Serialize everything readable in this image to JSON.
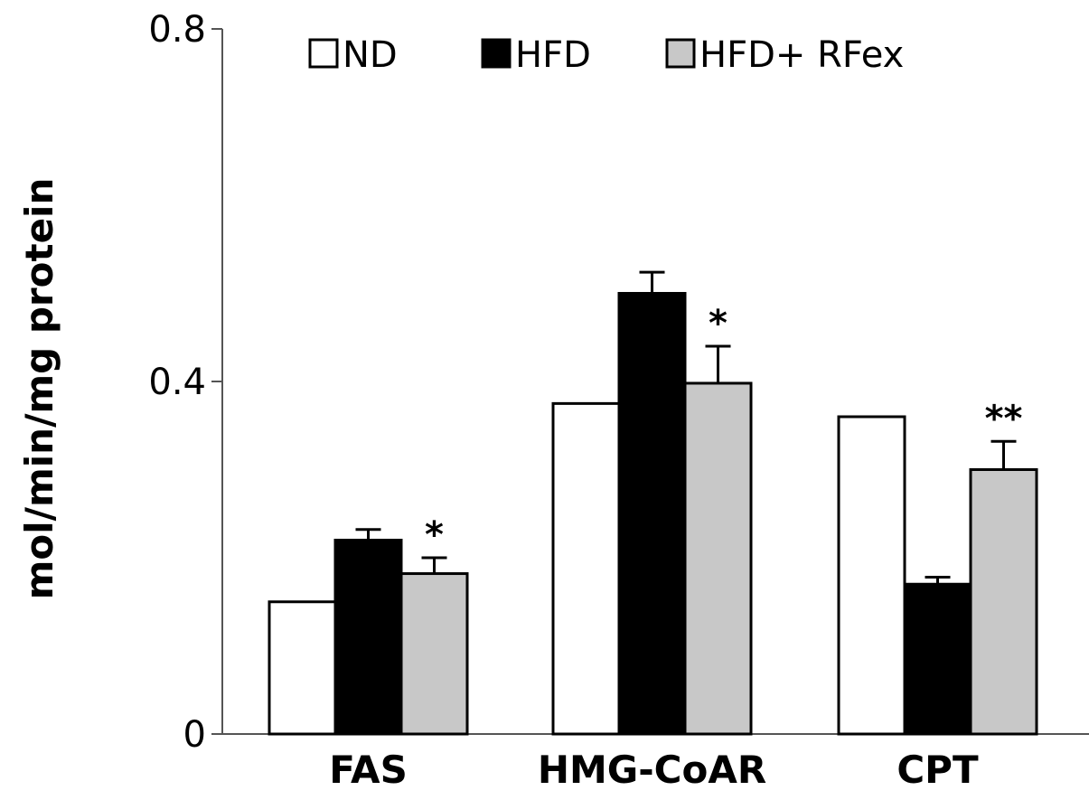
{
  "chart_data": {
    "type": "bar",
    "ylabel": "mol/min/mg protein",
    "ylim": [
      0,
      0.8
    ],
    "yticks": [
      0,
      0.4,
      0.8
    ],
    "ytick_labels": [
      "0",
      "0.4",
      "0.8"
    ],
    "categories": [
      "FAS",
      "HMG-CoAR",
      "CPT"
    ],
    "grid": false,
    "legend_position": "top",
    "series": [
      {
        "name": "ND",
        "color": "#ffffff",
        "values": [
          0.15,
          0.375,
          0.36
        ],
        "errors": [
          0,
          0,
          0
        ],
        "significance": [
          "",
          "",
          ""
        ]
      },
      {
        "name": "HFD",
        "color": "#000000",
        "values": [
          0.22,
          0.5,
          0.17
        ],
        "errors": [
          0.012,
          0.024,
          0.008
        ],
        "significance": [
          "",
          "",
          ""
        ]
      },
      {
        "name": "HFD+ RFex",
        "color": "#c8c8c8",
        "values": [
          0.182,
          0.398,
          0.3
        ],
        "errors": [
          0.018,
          0.042,
          0.032
        ],
        "significance": [
          "*",
          "*",
          "**"
        ]
      }
    ]
  }
}
